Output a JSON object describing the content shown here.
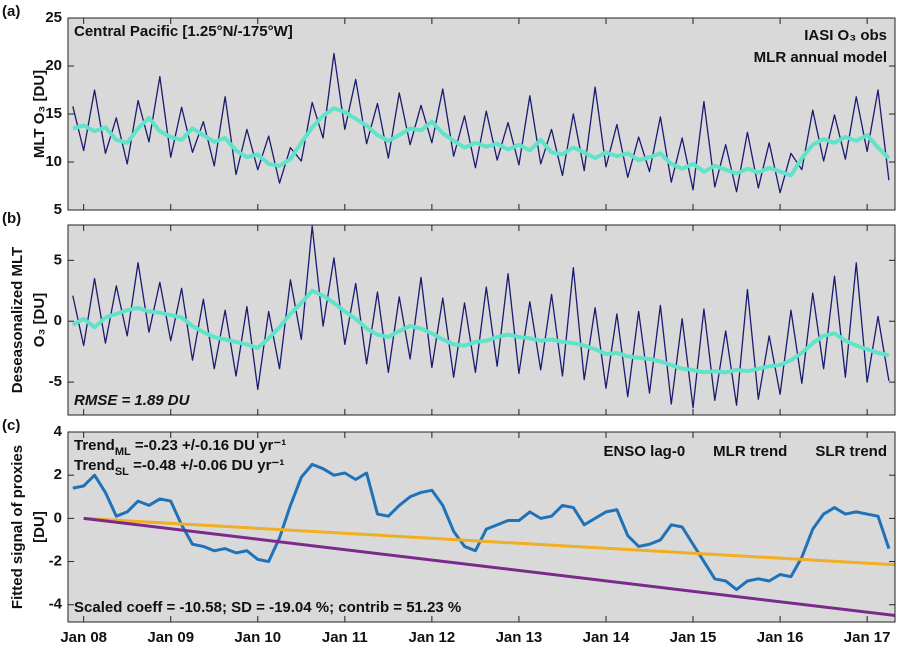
{
  "chart_data": [
    {
      "type": "line",
      "panel_label": "(a)",
      "ylabel": [
        "MLT O₃ [DU]"
      ],
      "xlim": [
        2007.82,
        2017.32
      ],
      "ylim": [
        5,
        25
      ],
      "yticks": [
        5,
        10,
        15,
        20,
        25
      ],
      "legend": "upper right",
      "legend_layout": "column",
      "annotations": [
        {
          "text": "Central Pacific [1.25°N/-175°W]",
          "color": "#111111",
          "corner": "upper left",
          "style": "normal"
        }
      ],
      "x": [
        2007.875,
        2008,
        2008.125,
        2008.25,
        2008.375,
        2008.5,
        2008.625,
        2008.75,
        2008.875,
        2009,
        2009.125,
        2009.25,
        2009.375,
        2009.5,
        2009.625,
        2009.75,
        2009.875,
        2010,
        2010.125,
        2010.25,
        2010.375,
        2010.5,
        2010.625,
        2010.75,
        2010.875,
        2011,
        2011.125,
        2011.25,
        2011.375,
        2011.5,
        2011.625,
        2011.75,
        2011.875,
        2012,
        2012.125,
        2012.25,
        2012.375,
        2012.5,
        2012.625,
        2012.75,
        2012.875,
        2013,
        2013.125,
        2013.25,
        2013.375,
        2013.5,
        2013.625,
        2013.75,
        2013.875,
        2014,
        2014.125,
        2014.25,
        2014.375,
        2014.5,
        2014.625,
        2014.75,
        2014.875,
        2015,
        2015.125,
        2015.25,
        2015.375,
        2015.5,
        2015.625,
        2015.75,
        2015.875,
        2016,
        2016.125,
        2016.25,
        2016.375,
        2016.5,
        2016.625,
        2016.75,
        2016.875,
        2017,
        2017.125,
        2017.25
      ],
      "series": [
        {
          "name": "IASI O₃ obs",
          "color": "#1b1b6f",
          "width": 1.3,
          "values": [
            15.8,
            11.2,
            17.5,
            10.9,
            14.6,
            9.8,
            16.4,
            12.1,
            18.9,
            10.5,
            15.7,
            11.0,
            14.2,
            9.6,
            16.8,
            8.7,
            13.4,
            9.2,
            12.7,
            7.8,
            11.5,
            10.1,
            16.2,
            12.5,
            21.3,
            13.4,
            18.6,
            11.9,
            16.1,
            10.4,
            17.2,
            11.8,
            15.9,
            12.0,
            17.6,
            10.6,
            14.8,
            9.4,
            15.3,
            10.2,
            14.1,
            9.7,
            16.9,
            9.8,
            13.4,
            8.6,
            15.0,
            9.1,
            17.8,
            9.5,
            13.9,
            8.4,
            12.6,
            9.0,
            14.7,
            7.9,
            12.5,
            7.1,
            16.3,
            7.4,
            11.8,
            6.9,
            13.1,
            7.3,
            12.0,
            6.8,
            10.9,
            9.2,
            15.4,
            10.1,
            14.9,
            10.3,
            16.8,
            11.1,
            17.5,
            8.1
          ]
        },
        {
          "name": "MLR annual model",
          "color": "#5fe3c9",
          "width": 4,
          "values": [
            13.5,
            13.8,
            13.2,
            13.6,
            12.3,
            12.0,
            13.5,
            14.6,
            13.2,
            12.6,
            12.3,
            13.5,
            12.8,
            12.1,
            12.5,
            11.2,
            10.5,
            10.8,
            9.8,
            9.6,
            10.3,
            12.0,
            13.6,
            14.8,
            15.6,
            15.2,
            14.5,
            13.8,
            12.8,
            12.2,
            12.8,
            13.5,
            13.3,
            14.2,
            13.0,
            12.2,
            11.5,
            12.0,
            11.6,
            11.9,
            11.3,
            11.8,
            11.2,
            12.3,
            11.0,
            10.8,
            11.5,
            11.0,
            10.4,
            11.0,
            10.6,
            10.9,
            10.2,
            10.5,
            10.9,
            9.8,
            9.3,
            9.8,
            9.0,
            9.6,
            9.2,
            8.8,
            9.3,
            8.9,
            9.4,
            9.0,
            8.6,
            10.4,
            11.8,
            12.4,
            12.0,
            12.6,
            12.2,
            12.8,
            11.5,
            10.4
          ]
        }
      ]
    },
    {
      "type": "line",
      "panel_label": "(b)",
      "ylabel": [
        "Deseasonalized MLT",
        "O₃ [DU]"
      ],
      "xlim": [
        2007.82,
        2017.32
      ],
      "ylim": [
        -7.7,
        7.9
      ],
      "yticks": [
        -5,
        0,
        5
      ],
      "annotations": [
        {
          "text": "RMSE = 1.89 DU",
          "color": "#3cc8b4",
          "corner": "lower left",
          "style": "italic"
        }
      ],
      "x": [
        2007.875,
        2008,
        2008.125,
        2008.25,
        2008.375,
        2008.5,
        2008.625,
        2008.75,
        2008.875,
        2009,
        2009.125,
        2009.25,
        2009.375,
        2009.5,
        2009.625,
        2009.75,
        2009.875,
        2010,
        2010.125,
        2010.25,
        2010.375,
        2010.5,
        2010.625,
        2010.75,
        2010.875,
        2011,
        2011.125,
        2011.25,
        2011.375,
        2011.5,
        2011.625,
        2011.75,
        2011.875,
        2012,
        2012.125,
        2012.25,
        2012.375,
        2012.5,
        2012.625,
        2012.75,
        2012.875,
        2013,
        2013.125,
        2013.25,
        2013.375,
        2013.5,
        2013.625,
        2013.75,
        2013.875,
        2014,
        2014.125,
        2014.25,
        2014.375,
        2014.5,
        2014.625,
        2014.75,
        2014.875,
        2015,
        2015.125,
        2015.25,
        2015.375,
        2015.5,
        2015.625,
        2015.75,
        2015.875,
        2016,
        2016.125,
        2016.25,
        2016.375,
        2016.5,
        2016.625,
        2016.75,
        2016.875,
        2017,
        2017.125,
        2017.25
      ],
      "series": [
        {
          "color": "#1b1b6f",
          "width": 1.3,
          "values": [
            2.1,
            -2.0,
            3.5,
            -1.8,
            2.9,
            -1.2,
            4.8,
            -0.9,
            3.2,
            -1.6,
            2.7,
            -3.2,
            1.8,
            -3.9,
            0.9,
            -4.5,
            1.2,
            -5.6,
            0.8,
            -3.9,
            3.4,
            -1.5,
            7.8,
            -0.4,
            5.2,
            -1.9,
            3.1,
            -3.5,
            2.4,
            -4.2,
            2.0,
            -3.1,
            3.6,
            -3.8,
            1.9,
            -4.6,
            1.5,
            -4.2,
            2.8,
            -3.7,
            3.9,
            -4.3,
            1.6,
            -4.0,
            2.2,
            -4.5,
            4.4,
            -4.8,
            1.1,
            -5.5,
            0.6,
            -6.2,
            0.8,
            -5.9,
            1.3,
            -6.8,
            0.2,
            -7.1,
            1.0,
            -6.5,
            -0.8,
            -6.9,
            2.6,
            -6.4,
            -1.2,
            -6.0,
            0.9,
            -5.1,
            2.3,
            -3.9,
            3.7,
            -4.6,
            4.8,
            -5.0,
            0.4,
            -4.9
          ]
        },
        {
          "color": "#5fe3c9",
          "width": 4,
          "values": [
            -0.3,
            0.2,
            -0.5,
            0.3,
            0.6,
            0.9,
            1.1,
            0.8,
            0.7,
            0.5,
            0.3,
            -0.4,
            -0.9,
            -1.3,
            -1.5,
            -1.7,
            -1.9,
            -2.2,
            -1.4,
            -0.5,
            0.6,
            1.5,
            2.5,
            2.1,
            1.5,
            0.8,
            0.2,
            -0.6,
            -1.1,
            -1.3,
            -0.8,
            -0.4,
            -0.6,
            -1.0,
            -1.5,
            -1.9,
            -2.0,
            -1.7,
            -1.6,
            -1.3,
            -1.1,
            -1.3,
            -1.4,
            -1.6,
            -1.5,
            -1.7,
            -1.8,
            -2.0,
            -2.3,
            -2.7,
            -2.6,
            -2.9,
            -3.0,
            -3.1,
            -3.3,
            -3.6,
            -3.9,
            -4.0,
            -4.2,
            -4.1,
            -4.2,
            -4.0,
            -4.1,
            -3.9,
            -3.7,
            -3.6,
            -3.2,
            -2.6,
            -1.8,
            -1.2,
            -1.0,
            -1.6,
            -2.0,
            -2.3,
            -2.6,
            -2.8
          ]
        }
      ]
    },
    {
      "type": "line",
      "panel_label": "(c)",
      "ylabel": [
        "Fitted signal of proxies",
        "[DU]"
      ],
      "xlim": [
        2007.82,
        2017.32
      ],
      "ylim": [
        -4.8,
        4
      ],
      "yticks": [
        -4,
        -2,
        0,
        2,
        4
      ],
      "xticks": [
        {
          "value": 2008,
          "label": "Jan 08"
        },
        {
          "value": 2009,
          "label": "Jan 09"
        },
        {
          "value": 2010,
          "label": "Jan 10"
        },
        {
          "value": 2011,
          "label": "Jan 11"
        },
        {
          "value": 2012,
          "label": "Jan 12"
        },
        {
          "value": 2013,
          "label": "Jan 13"
        },
        {
          "value": 2014,
          "label": "Jan 14"
        },
        {
          "value": 2015,
          "label": "Jan 15"
        },
        {
          "value": 2016,
          "label": "Jan 16"
        },
        {
          "value": 2017,
          "label": "Jan 17"
        }
      ],
      "legend": "upper right",
      "legend_layout": "row",
      "annotations": [
        {
          "text": "Trend",
          "sub": "ML",
          "rest": " =-0.23 +/-0.16 DU yr⁻¹",
          "color": "#f0ae22",
          "corner": "upper left",
          "style": "normal"
        },
        {
          "text": "Trend",
          "sub": "SL",
          "rest": " =-0.48 +/-0.06 DU yr⁻¹",
          "color": "#7b2a8c",
          "corner": "upper left",
          "style": "normal"
        },
        {
          "text": "Scaled coeff = -10.58; SD = -19.04 %; contrib = 51.23 %",
          "color": "#1f72b8",
          "corner": "lower left",
          "style": "normal"
        }
      ],
      "x": [
        2007.875,
        2008,
        2008.125,
        2008.25,
        2008.375,
        2008.5,
        2008.625,
        2008.75,
        2008.875,
        2009,
        2009.125,
        2009.25,
        2009.375,
        2009.5,
        2009.625,
        2009.75,
        2009.875,
        2010,
        2010.125,
        2010.25,
        2010.375,
        2010.5,
        2010.625,
        2010.75,
        2010.875,
        2011,
        2011.125,
        2011.25,
        2011.375,
        2011.5,
        2011.625,
        2011.75,
        2011.875,
        2012,
        2012.125,
        2012.25,
        2012.375,
        2012.5,
        2012.625,
        2012.75,
        2012.875,
        2013,
        2013.125,
        2013.25,
        2013.375,
        2013.5,
        2013.625,
        2013.75,
        2013.875,
        2014,
        2014.125,
        2014.25,
        2014.375,
        2014.5,
        2014.625,
        2014.75,
        2014.875,
        2015,
        2015.125,
        2015.25,
        2015.375,
        2015.5,
        2015.625,
        2015.75,
        2015.875,
        2016,
        2016.125,
        2016.25,
        2016.375,
        2016.5,
        2016.625,
        2016.75,
        2016.875,
        2017,
        2017.125,
        2017.25
      ],
      "series": [
        {
          "name": "ENSO lag-0",
          "color": "#1f72b8",
          "width": 3,
          "values": [
            1.4,
            1.5,
            2.0,
            1.2,
            0.1,
            0.3,
            0.8,
            0.6,
            0.9,
            0.8,
            -0.3,
            -1.2,
            -1.3,
            -1.5,
            -1.4,
            -1.6,
            -1.5,
            -1.9,
            -2.0,
            -0.9,
            0.6,
            1.9,
            2.5,
            2.3,
            2.0,
            2.1,
            1.8,
            2.1,
            0.2,
            0.1,
            0.6,
            1.0,
            1.2,
            1.3,
            0.6,
            -0.6,
            -1.3,
            -1.5,
            -0.5,
            -0.3,
            -0.1,
            -0.1,
            0.3,
            0.0,
            0.1,
            0.6,
            0.5,
            -0.3,
            0.0,
            0.3,
            0.4,
            -0.8,
            -1.3,
            -1.2,
            -1.0,
            -0.3,
            -0.4,
            -1.2,
            -2.0,
            -2.8,
            -2.9,
            -3.3,
            -2.9,
            -2.8,
            -2.9,
            -2.6,
            -2.7,
            -1.8,
            -0.5,
            0.2,
            0.5,
            0.2,
            0.3,
            0.2,
            0.1,
            -1.4
          ]
        },
        {
          "name": "MLR trend",
          "color": "#f0ae22",
          "width": 3,
          "x": [
            2008,
            2017.32
          ],
          "values": [
            0,
            -2.15
          ]
        },
        {
          "name": "SLR trend",
          "color": "#7b2a8c",
          "width": 3,
          "x": [
            2008,
            2017.32
          ],
          "values": [
            0,
            -4.5
          ]
        }
      ]
    }
  ]
}
